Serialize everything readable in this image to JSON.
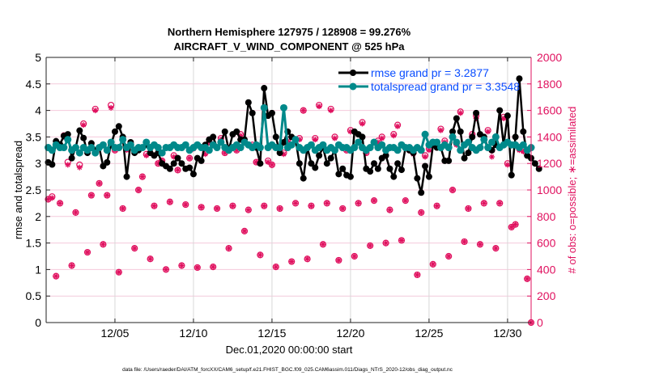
{
  "chart_data": {
    "type": "line",
    "title": "Northern Hemisphere 127975 / 128908 = 99.276%",
    "subtitle": "AIRCRAFT_V_WIND_COMPONENT @ 525 hPa",
    "xlabel": "Dec.01,2020 00:00:00 start",
    "ylabel": "rmse and totalspread",
    "y2label": "# of obs: o=possible; ∗=assimilated",
    "footer": "data file: /Users/raeder/DAI/ATM_forcXX/CAM6_setup/f.e21.FHIST_BGC.f09_025.CAM6assim.011/Diags_NTrS_2020-12/obs_diag_output.nc",
    "x_unit": "day of December 2020",
    "x_start": 0.75,
    "x_step": 0.25,
    "xlim": [
      0.62,
      31.5
    ],
    "xticks": [
      5,
      10,
      15,
      20,
      25,
      30
    ],
    "xticklabels": [
      "12/05",
      "12/10",
      "12/15",
      "12/20",
      "12/25",
      "12/30"
    ],
    "ylim": [
      0,
      5
    ],
    "yticks": [
      "0",
      "0.5",
      "1",
      "1.5",
      "2",
      "2.5",
      "3",
      "3.5",
      "4",
      "4.5",
      "5"
    ],
    "y2lim": [
      0,
      2000
    ],
    "y2ticks": [
      "0",
      "200",
      "400",
      "600",
      "800",
      "1000",
      "1200",
      "1400",
      "1600",
      "1800",
      "2000"
    ],
    "grid": true,
    "legend_placement": "top-right",
    "colors": {
      "rmse": "#000000",
      "totalspread": "#00898a",
      "obs": "#e0115f",
      "legend_text": "#0a4dff",
      "grid_h": "#f4cadb",
      "grid_v": "#d8d8d8"
    },
    "series": [
      {
        "name": "rmse grand pr = 3.2877",
        "axis": "left",
        "values": [
          3.02,
          2.98,
          3.42,
          3.36,
          3.52,
          3.55,
          3.1,
          3.3,
          3.62,
          3.48,
          3.2,
          3.38,
          3.25,
          3.3,
          2.95,
          3.02,
          3.35,
          3.6,
          3.7,
          3.5,
          2.75,
          3.4,
          3.2,
          3.25,
          3.3,
          3.35,
          3.2,
          3.15,
          3.2,
          3.0,
          2.95,
          2.9,
          3.0,
          3.1,
          3.0,
          2.9,
          2.92,
          2.8,
          3.1,
          3.05,
          3.35,
          3.45,
          3.5,
          3.3,
          3.4,
          3.6,
          3.25,
          3.55,
          3.6,
          3.45,
          3.45,
          4.15,
          3.95,
          3.3,
          3.0,
          4.42,
          3.9,
          3.95,
          3.5,
          3.2,
          3.4,
          3.6,
          3.5,
          3.45,
          3.0,
          2.72,
          3.3,
          3.0,
          2.92,
          3.15,
          3.3,
          3.0,
          3.1,
          3.25,
          2.8,
          2.9,
          2.78,
          2.75,
          3.6,
          3.55,
          3.5,
          2.9,
          2.85,
          3.0,
          2.9,
          3.1,
          3.15,
          2.9,
          2.75,
          3.0,
          2.88,
          3.3,
          3.25,
          3.2,
          2.72,
          2.45,
          2.95,
          2.75,
          3.35,
          3.3,
          3.3,
          3.05,
          3.05,
          3.6,
          3.85,
          3.6,
          3.1,
          3.2,
          3.5,
          3.95,
          3.55,
          3.5,
          3.3,
          3.25,
          3.35,
          4.0,
          3.35,
          3.9,
          2.78,
          3.5,
          4.6,
          3.6,
          3.15,
          3.1,
          3.0,
          2.9
        ]
      },
      {
        "name": "totalspread grand pr = 3.3548",
        "axis": "left",
        "values": [
          3.3,
          3.25,
          3.35,
          3.3,
          3.3,
          3.45,
          3.25,
          3.3,
          3.2,
          3.3,
          3.25,
          3.3,
          3.2,
          3.3,
          3.35,
          3.25,
          3.4,
          3.3,
          3.3,
          3.45,
          3.3,
          3.35,
          3.25,
          3.3,
          3.3,
          3.4,
          3.3,
          3.35,
          3.3,
          3.2,
          3.3,
          3.3,
          3.35,
          3.3,
          3.3,
          3.35,
          3.25,
          3.3,
          3.35,
          3.3,
          3.3,
          3.25,
          3.35,
          3.3,
          3.4,
          3.3,
          3.25,
          3.3,
          3.35,
          3.3,
          3.4,
          3.35,
          3.3,
          3.35,
          3.3,
          4.05,
          3.3,
          3.35,
          3.3,
          3.3,
          4.05,
          3.3,
          3.35,
          3.45,
          3.3,
          3.25,
          3.3,
          3.35,
          3.25,
          3.3,
          3.35,
          3.25,
          3.3,
          3.25,
          3.35,
          3.3,
          3.3,
          3.25,
          3.3,
          3.4,
          3.3,
          3.25,
          3.3,
          3.4,
          3.3,
          3.35,
          3.25,
          3.3,
          3.3,
          3.25,
          3.35,
          3.3,
          3.3,
          3.25,
          3.3,
          3.25,
          3.55,
          3.35,
          3.4,
          3.4,
          3.3,
          3.35,
          3.3,
          3.5,
          3.4,
          3.25,
          3.35,
          3.4,
          3.3,
          3.25,
          3.3,
          3.45,
          3.3,
          3.4,
          3.5,
          3.3,
          3.35,
          3.4,
          3.35,
          3.35,
          3.3,
          3.35,
          3.25,
          3.3
        ]
      },
      {
        "name": "possible",
        "axis": "right",
        "marker": "o",
        "values": [
          930,
          950,
          350,
          900,
          1410,
          1210,
          430,
          830,
          1190,
          1500,
          530,
          960,
          1610,
          1050,
          590,
          960,
          1640,
          1300,
          380,
          860,
          1310,
          1350,
          560,
          1000,
          1100,
          1270,
          480,
          880,
          1200,
          1220,
          400,
          910,
          1260,
          1150,
          430,
          890,
          1240,
          1320,
          415,
          870,
          1280,
          1360,
          420,
          860,
          1390,
          1280,
          560,
          880,
          1300,
          1420,
          690,
          850,
          1340,
          1210,
          510,
          880,
          1220,
          1190,
          420,
          860,
          1280,
          1380,
          460,
          900,
          1390,
          1600,
          480,
          880,
          1390,
          1640,
          590,
          900,
          1610,
          1400,
          470,
          860,
          1300,
          1450,
          500,
          900,
          1510,
          1280,
          580,
          920,
          1370,
          1400,
          600,
          850,
          1420,
          1490,
          620,
          920,
          1300,
          1280,
          360,
          830,
          1260,
          1310,
          440,
          880,
          1460,
          1370,
          500,
          1000,
          1350,
          1590,
          610,
          860,
          1420,
          1560,
          590,
          900,
          1450,
          1300,
          560,
          900,
          1550,
          1200,
          720,
          740,
          1310,
          1300,
          330,
          0
        ]
      },
      {
        "name": "assimilated",
        "axis": "right",
        "marker": "*",
        "values": [
          930,
          940,
          350,
          900,
          1400,
          1190,
          430,
          830,
          1170,
          1490,
          530,
          960,
          1600,
          1050,
          590,
          960,
          1620,
          1300,
          380,
          860,
          1300,
          1350,
          560,
          1000,
          1100,
          1260,
          480,
          880,
          1200,
          1220,
          400,
          910,
          1250,
          1150,
          430,
          890,
          1240,
          1310,
          415,
          870,
          1270,
          1360,
          420,
          860,
          1380,
          1280,
          560,
          880,
          1300,
          1410,
          690,
          850,
          1330,
          1210,
          510,
          880,
          1210,
          1190,
          420,
          860,
          1270,
          1370,
          460,
          900,
          1380,
          1600,
          480,
          880,
          1380,
          1630,
          590,
          900,
          1600,
          1390,
          470,
          860,
          1300,
          1440,
          500,
          900,
          1500,
          1280,
          580,
          920,
          1360,
          1390,
          600,
          850,
          1410,
          1480,
          620,
          920,
          1300,
          1270,
          360,
          830,
          1250,
          1300,
          440,
          880,
          1450,
          1360,
          500,
          1000,
          1340,
          1580,
          610,
          860,
          1410,
          1540,
          590,
          900,
          1440,
          1250,
          560,
          900,
          1540,
          1190,
          720,
          740,
          1300,
          1290,
          330,
          0
        ]
      }
    ]
  }
}
